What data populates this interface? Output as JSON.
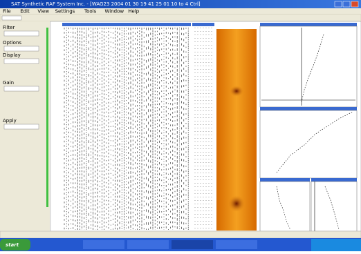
{
  "window": {
    "title": "SAT Synthetic RAF System Inc. - [WAG23 2004 01 30 19 41 25 01 10 to 4 Ctrl]",
    "menu": [
      "File",
      "Edit",
      "View",
      "Settings",
      "Tools",
      "Window",
      "Help"
    ]
  },
  "left_panel": {
    "labels": [
      "Filter",
      "Options",
      "Display",
      "Gain",
      "Apply"
    ]
  },
  "taskbar": {
    "start": "start"
  }
}
